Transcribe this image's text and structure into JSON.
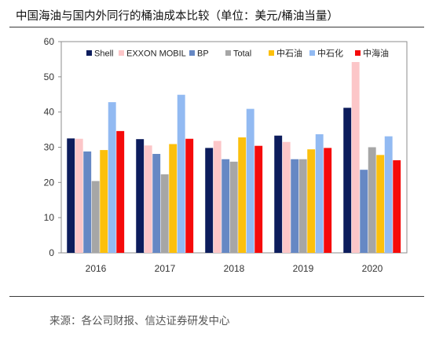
{
  "title": "中国海油与国内外同行的桶油成本比较（单位：美元/桶油当量）",
  "source": "来源：各公司财报、信达证券研发中心",
  "colors": {
    "Shell": "#0c1c5c",
    "EXXON MOBIL": "#fcc6c8",
    "BP": "#6688c4",
    "Total": "#a6a6a6",
    "中石油": "#fcc00c",
    "中石化": "#92baf2",
    "中海油": "#f50a0a"
  },
  "chart_data": {
    "type": "bar",
    "categories": [
      "2016",
      "2017",
      "2018",
      "2019",
      "2020"
    ],
    "series": [
      {
        "name": "Shell",
        "values": [
          32.5,
          32.3,
          29.8,
          33.3,
          41.2
        ]
      },
      {
        "name": "EXXON MOBIL",
        "values": [
          32.4,
          30.5,
          31.8,
          31.5,
          54.2
        ]
      },
      {
        "name": "BP",
        "values": [
          28.8,
          28.1,
          26.6,
          26.6,
          23.6
        ]
      },
      {
        "name": "Total",
        "values": [
          20.4,
          22.3,
          25.9,
          26.6,
          30.0
        ]
      },
      {
        "name": "中石油",
        "values": [
          29.2,
          30.9,
          32.8,
          29.4,
          27.8
        ]
      },
      {
        "name": "中石化",
        "values": [
          42.8,
          44.9,
          40.9,
          33.7,
          33.1
        ]
      },
      {
        "name": "中海油",
        "values": [
          34.6,
          32.4,
          30.4,
          29.8,
          26.3
        ]
      }
    ],
    "ylim": [
      0,
      60
    ],
    "yticks": [
      0,
      10,
      20,
      30,
      40,
      50,
      60
    ],
    "grid": false,
    "legend_position": "top"
  }
}
